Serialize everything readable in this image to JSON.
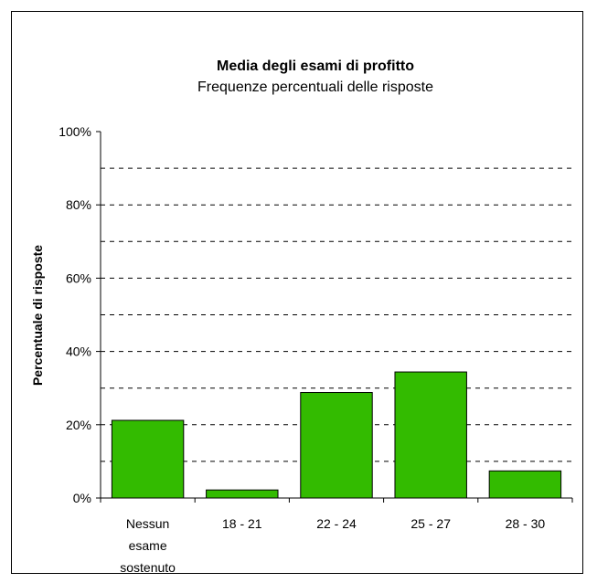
{
  "chart_data": {
    "type": "bar",
    "title": "Media degli esami di profitto",
    "subtitle": "Frequenze percentuali delle risposte",
    "xlabel": "",
    "ylabel": "Percentuale di risposte",
    "categories": [
      [
        "Nessun",
        "esame",
        "sostenuto"
      ],
      [
        "18 - 21"
      ],
      [
        "22 - 24"
      ],
      [
        "25 - 27"
      ],
      [
        "28 - 30"
      ]
    ],
    "values": [
      21.2,
      2.2,
      28.8,
      34.4,
      7.4
    ],
    "ylim": [
      0,
      100
    ],
    "yticks": [
      "0%",
      "20%",
      "40%",
      "60%",
      "80%",
      "100%"
    ],
    "ytick_values": [
      0,
      20,
      40,
      60,
      80,
      100
    ],
    "grid_values": [
      10,
      20,
      30,
      40,
      50,
      60,
      70,
      80,
      90
    ],
    "grid": "dashed horizontal",
    "bar_color": "#33BB00"
  }
}
